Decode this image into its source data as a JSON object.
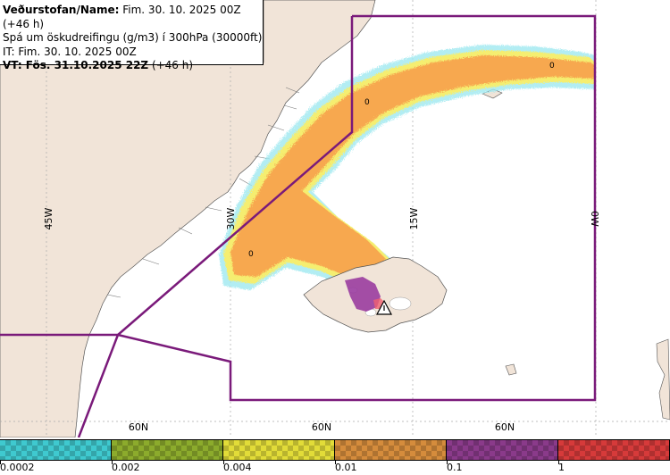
{
  "header": {
    "line1_bold": "Veðurstofan/Name:",
    "line1_rest": " Fim. 30. 10. 2025 00Z (+46 h)",
    "line2": "Spá um öskudreifingu (g/m3) í 300hPa (30000ft)",
    "line3": "IT: Fim. 30. 10. 2025 00Z",
    "line4_bold": "VT: Fös. 31.10.2025 22Z",
    "line4_rest": " (+46 h)"
  },
  "map": {
    "longitude_labels": [
      "45W",
      "30W",
      "15W",
      "0W"
    ],
    "latitude_labels": [
      "60N",
      "60N",
      "60N"
    ],
    "contour_labels": [
      "0",
      "0",
      "0"
    ],
    "warning_icon": "warning-triangle-icon",
    "colors": {
      "land": "#f1e4d8",
      "sea": "#ffffff",
      "boundary": "#7a1a7a",
      "ash_orange": "#f7a850",
      "ash_purple": "#9a3ca0",
      "ash_yellow": "#f5ee70",
      "ash_cyan": "#9fe8f0"
    }
  },
  "legend": {
    "labels": [
      "0.0002",
      "0.002",
      "0.004",
      "0.01",
      "0.1",
      "1"
    ],
    "colors": [
      "#3fc9cf",
      "#8cab2c",
      "#e2dc38",
      "#d58c3c",
      "#8a3a8a",
      "#d63a3a"
    ]
  }
}
